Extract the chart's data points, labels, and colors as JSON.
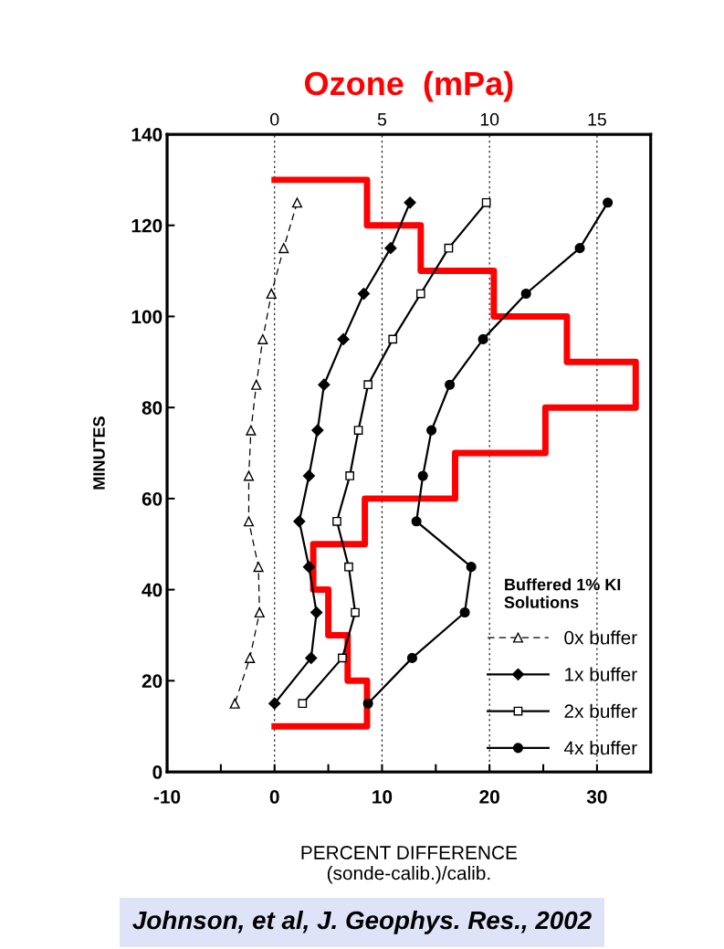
{
  "chart_data": {
    "type": "line",
    "x2label": "Ozone  (mPa)",
    "ylabel": "MINUTES",
    "xlabel": "PERCENT DIFFERENCE\n(sonde-calib.)/calib.",
    "legend_title": "Buffered 1% KI\nSolutions",
    "annotations": [
      "Johnson, et al, J. Geophys. Res., 2002"
    ],
    "xlim": [
      -10,
      35
    ],
    "xticks": [
      -10,
      {
        "value": -5,
        "label": null
      },
      0,
      {
        "value": 5,
        "label": null
      },
      10,
      {
        "value": 15,
        "label": null
      },
      20,
      {
        "value": 25,
        "label": null
      },
      30,
      {
        "value": 35,
        "label": null
      }
    ],
    "x2lim": [
      -5,
      17.5
    ],
    "x2ticks": [
      0,
      5,
      10,
      15
    ],
    "ylim": [
      0,
      140
    ],
    "yticks": [
      0,
      20,
      40,
      60,
      80,
      100,
      120,
      140
    ],
    "grid": "x2",
    "legend": "bottom right",
    "series": [
      {
        "name": "0x buffer",
        "color": "#000000",
        "marker": "triangle",
        "line_style": "dashed",
        "x": [
          2.1,
          0.85,
          -0.3,
          -1.1,
          -1.7,
          -2.2,
          -2.4,
          -2.4,
          -1.5,
          -1.4,
          -2.3,
          -3.7
        ],
        "values": [
          125,
          115,
          105,
          95,
          85,
          75,
          65,
          55,
          45,
          35,
          25,
          15
        ]
      },
      {
        "name": "1x buffer",
        "color": "#000000",
        "marker": "diamond",
        "line_style": "solid",
        "x": [
          12.6,
          10.8,
          8.3,
          6.4,
          4.6,
          4.0,
          3.2,
          2.3,
          3.2,
          3.9,
          3.4,
          0
        ],
        "values": [
          125,
          115,
          105,
          95,
          85,
          75,
          65,
          55,
          45,
          35,
          25,
          15
        ]
      },
      {
        "name": "2x buffer",
        "color": "#000000",
        "marker": "square",
        "line_style": "solid",
        "x": [
          19.7,
          16.2,
          13.6,
          11.0,
          8.7,
          7.8,
          7.0,
          5.8,
          6.9,
          7.5,
          6.3,
          2.6
        ],
        "values": [
          125,
          115,
          105,
          95,
          85,
          75,
          65,
          55,
          45,
          35,
          25,
          15
        ]
      },
      {
        "name": "4x buffer",
        "color": "#000000",
        "marker": "circle",
        "line_style": "solid",
        "x": [
          31.0,
          28.4,
          23.4,
          19.4,
          16.3,
          14.6,
          13.8,
          13.2,
          18.3,
          17.7,
          12.8,
          8.7
        ],
        "values": [
          125,
          115,
          105,
          95,
          85,
          75,
          65,
          55,
          45,
          35,
          25,
          15
        ]
      },
      {
        "color": "#ff0000",
        "axis": "x2",
        "marker": "none",
        "line_style": "solid",
        "x": [
          0,
          4.3,
          4.3,
          6.8,
          6.8,
          10.2,
          10.2,
          13.6,
          13.6,
          16.8,
          16.8,
          12.6,
          12.6,
          8.4,
          8.4,
          4.2,
          4.2,
          1.8,
          1.8,
          2.5,
          2.5,
          3.4,
          3.4,
          4.3,
          4.3,
          0
        ],
        "values": [
          130,
          130,
          120,
          120,
          110,
          110,
          100,
          100,
          90,
          90,
          80,
          80,
          70,
          70,
          60,
          60,
          50,
          50,
          40,
          40,
          30,
          30,
          20,
          20,
          10,
          10
        ]
      }
    ]
  }
}
